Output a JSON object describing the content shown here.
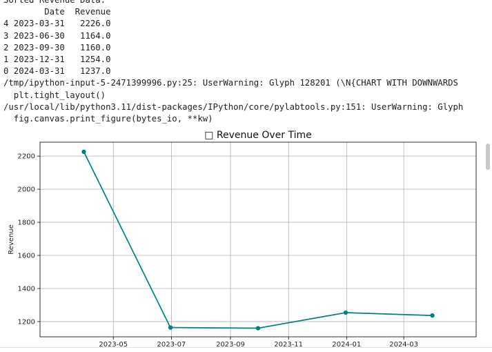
{
  "output": {
    "lines": [
      "Sorted Revenue Data:",
      "        Date  Revenue",
      "4 2023-03-31   2226.0",
      "3 2023-06-30   1164.0",
      "2 2023-09-30   1160.0",
      "1 2023-12-31   1254.0",
      "0 2024-03-31   1237.0",
      "/tmp/ipython-input-5-2471399996.py:25: UserWarning: Glyph 128201 (\\N{CHART WITH DOWNWARDS",
      "  plt.tight_layout()",
      "/usr/local/lib/python3.11/dist-packages/IPython/core/pylabtools.py:151: UserWarning: Glyph",
      "  fig.canvas.print_figure(bytes_io, **kw)"
    ]
  },
  "chart_data": {
    "type": "line",
    "title": "□ Revenue Over Time",
    "xlabel": "",
    "ylabel": "Revenue",
    "x": [
      "2023-03-31",
      "2023-06-30",
      "2023-09-30",
      "2023-12-31",
      "2024-03-31"
    ],
    "series": [
      {
        "values": [
          2226.0,
          1164.0,
          1160.0,
          1254.0,
          1237.0
        ]
      }
    ],
    "x_ticks": [
      "2023-05",
      "2023-07",
      "2023-09",
      "2023-11",
      "2024-01",
      "2024-03"
    ],
    "y_ticks": [
      1200,
      1400,
      1600,
      1800,
      2000,
      2200
    ],
    "xlim": [
      "2023-02-13",
      "2024-05-16"
    ],
    "ylim": [
      1108,
      2284
    ],
    "grid": true,
    "line_color": "#008080"
  }
}
